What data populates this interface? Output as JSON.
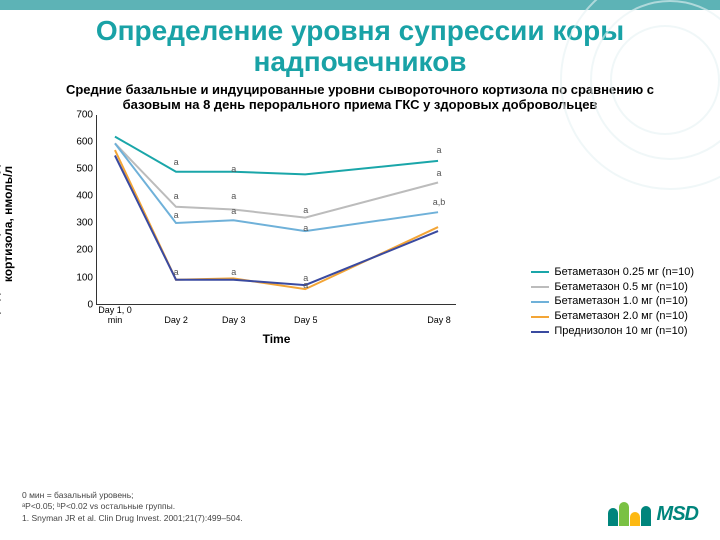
{
  "title": "Определение уровня супрессии коры надпочечников",
  "subtitle": "Средние базальные и индуцированные уровни сывороточного кортизола по сравнению с базовым на 8 день перорального приема ГКС у здоровых добровольцев",
  "ylabel": "Средний сывороточный уровень кортизола, нмоль/л",
  "xlabel": "Time",
  "chart": {
    "type": "line",
    "ylim": [
      0,
      700
    ],
    "ytick_step": 100,
    "x_positions": [
      0.05,
      0.22,
      0.38,
      0.58,
      0.95
    ],
    "x_labels": [
      "Day 1,\n0 min",
      "Day 2",
      "Day 3",
      "Day 5",
      "Day 8"
    ],
    "series": [
      {
        "label": "Бетаметазон 0.25 мг (n=10)",
        "color": "#1aa6a9",
        "values": [
          620,
          490,
          490,
          480,
          530
        ]
      },
      {
        "label": "Бетаметазон 0.5 мг (n=10)",
        "color": "#bcbcbc",
        "values": [
          595,
          360,
          350,
          320,
          450
        ]
      },
      {
        "label": "Бетаметазон 1.0 мг (n=10)",
        "color": "#6fb1d9",
        "values": [
          595,
          300,
          310,
          270,
          340
        ]
      },
      {
        "label": "Бетаметазон 2.0 мг (n=10)",
        "color": "#f3a536",
        "values": [
          570,
          90,
          95,
          55,
          285
        ]
      },
      {
        "label": "Преднизолон 10 мг (n=10)",
        "color": "#3a4aa0",
        "values": [
          550,
          90,
          90,
          70,
          270
        ]
      }
    ],
    "markers": [
      {
        "xi": 1,
        "y": 495,
        "t": "a"
      },
      {
        "xi": 2,
        "y": 470,
        "t": "a"
      },
      {
        "xi": 4,
        "y": 540,
        "t": "a"
      },
      {
        "xi": 1,
        "y": 370,
        "t": "a"
      },
      {
        "xi": 2,
        "y": 370,
        "t": "a"
      },
      {
        "xi": 4,
        "y": 455,
        "t": "a"
      },
      {
        "xi": 1,
        "y": 300,
        "t": "a"
      },
      {
        "xi": 2,
        "y": 315,
        "t": "a"
      },
      {
        "xi": 3,
        "y": 320,
        "t": "a"
      },
      {
        "xi": 4,
        "y": 350,
        "t": "a,b"
      },
      {
        "xi": 3,
        "y": 255,
        "t": "a"
      },
      {
        "xi": 1,
        "y": 90,
        "t": "a"
      },
      {
        "xi": 2,
        "y": 90,
        "t": "a"
      },
      {
        "xi": 3,
        "y": 70,
        "t": "a"
      },
      {
        "xi": 3,
        "y": 45,
        "t": "a"
      }
    ],
    "line_width": 2,
    "background": "#ffffff"
  },
  "footnotes": [
    "0 мин = базальный уровень;",
    "ᵃP<0.05; ᵇP<0.02 vs остальные группы.",
    "1. Snyman JR et al. Clin Drug Invest. 2001;21(7):499–504."
  ],
  "logo": {
    "text": "MSD",
    "colors": [
      "#00857c",
      "#7ac143",
      "#fdb913",
      "#00857c"
    ]
  },
  "accent": "#19a2a6"
}
